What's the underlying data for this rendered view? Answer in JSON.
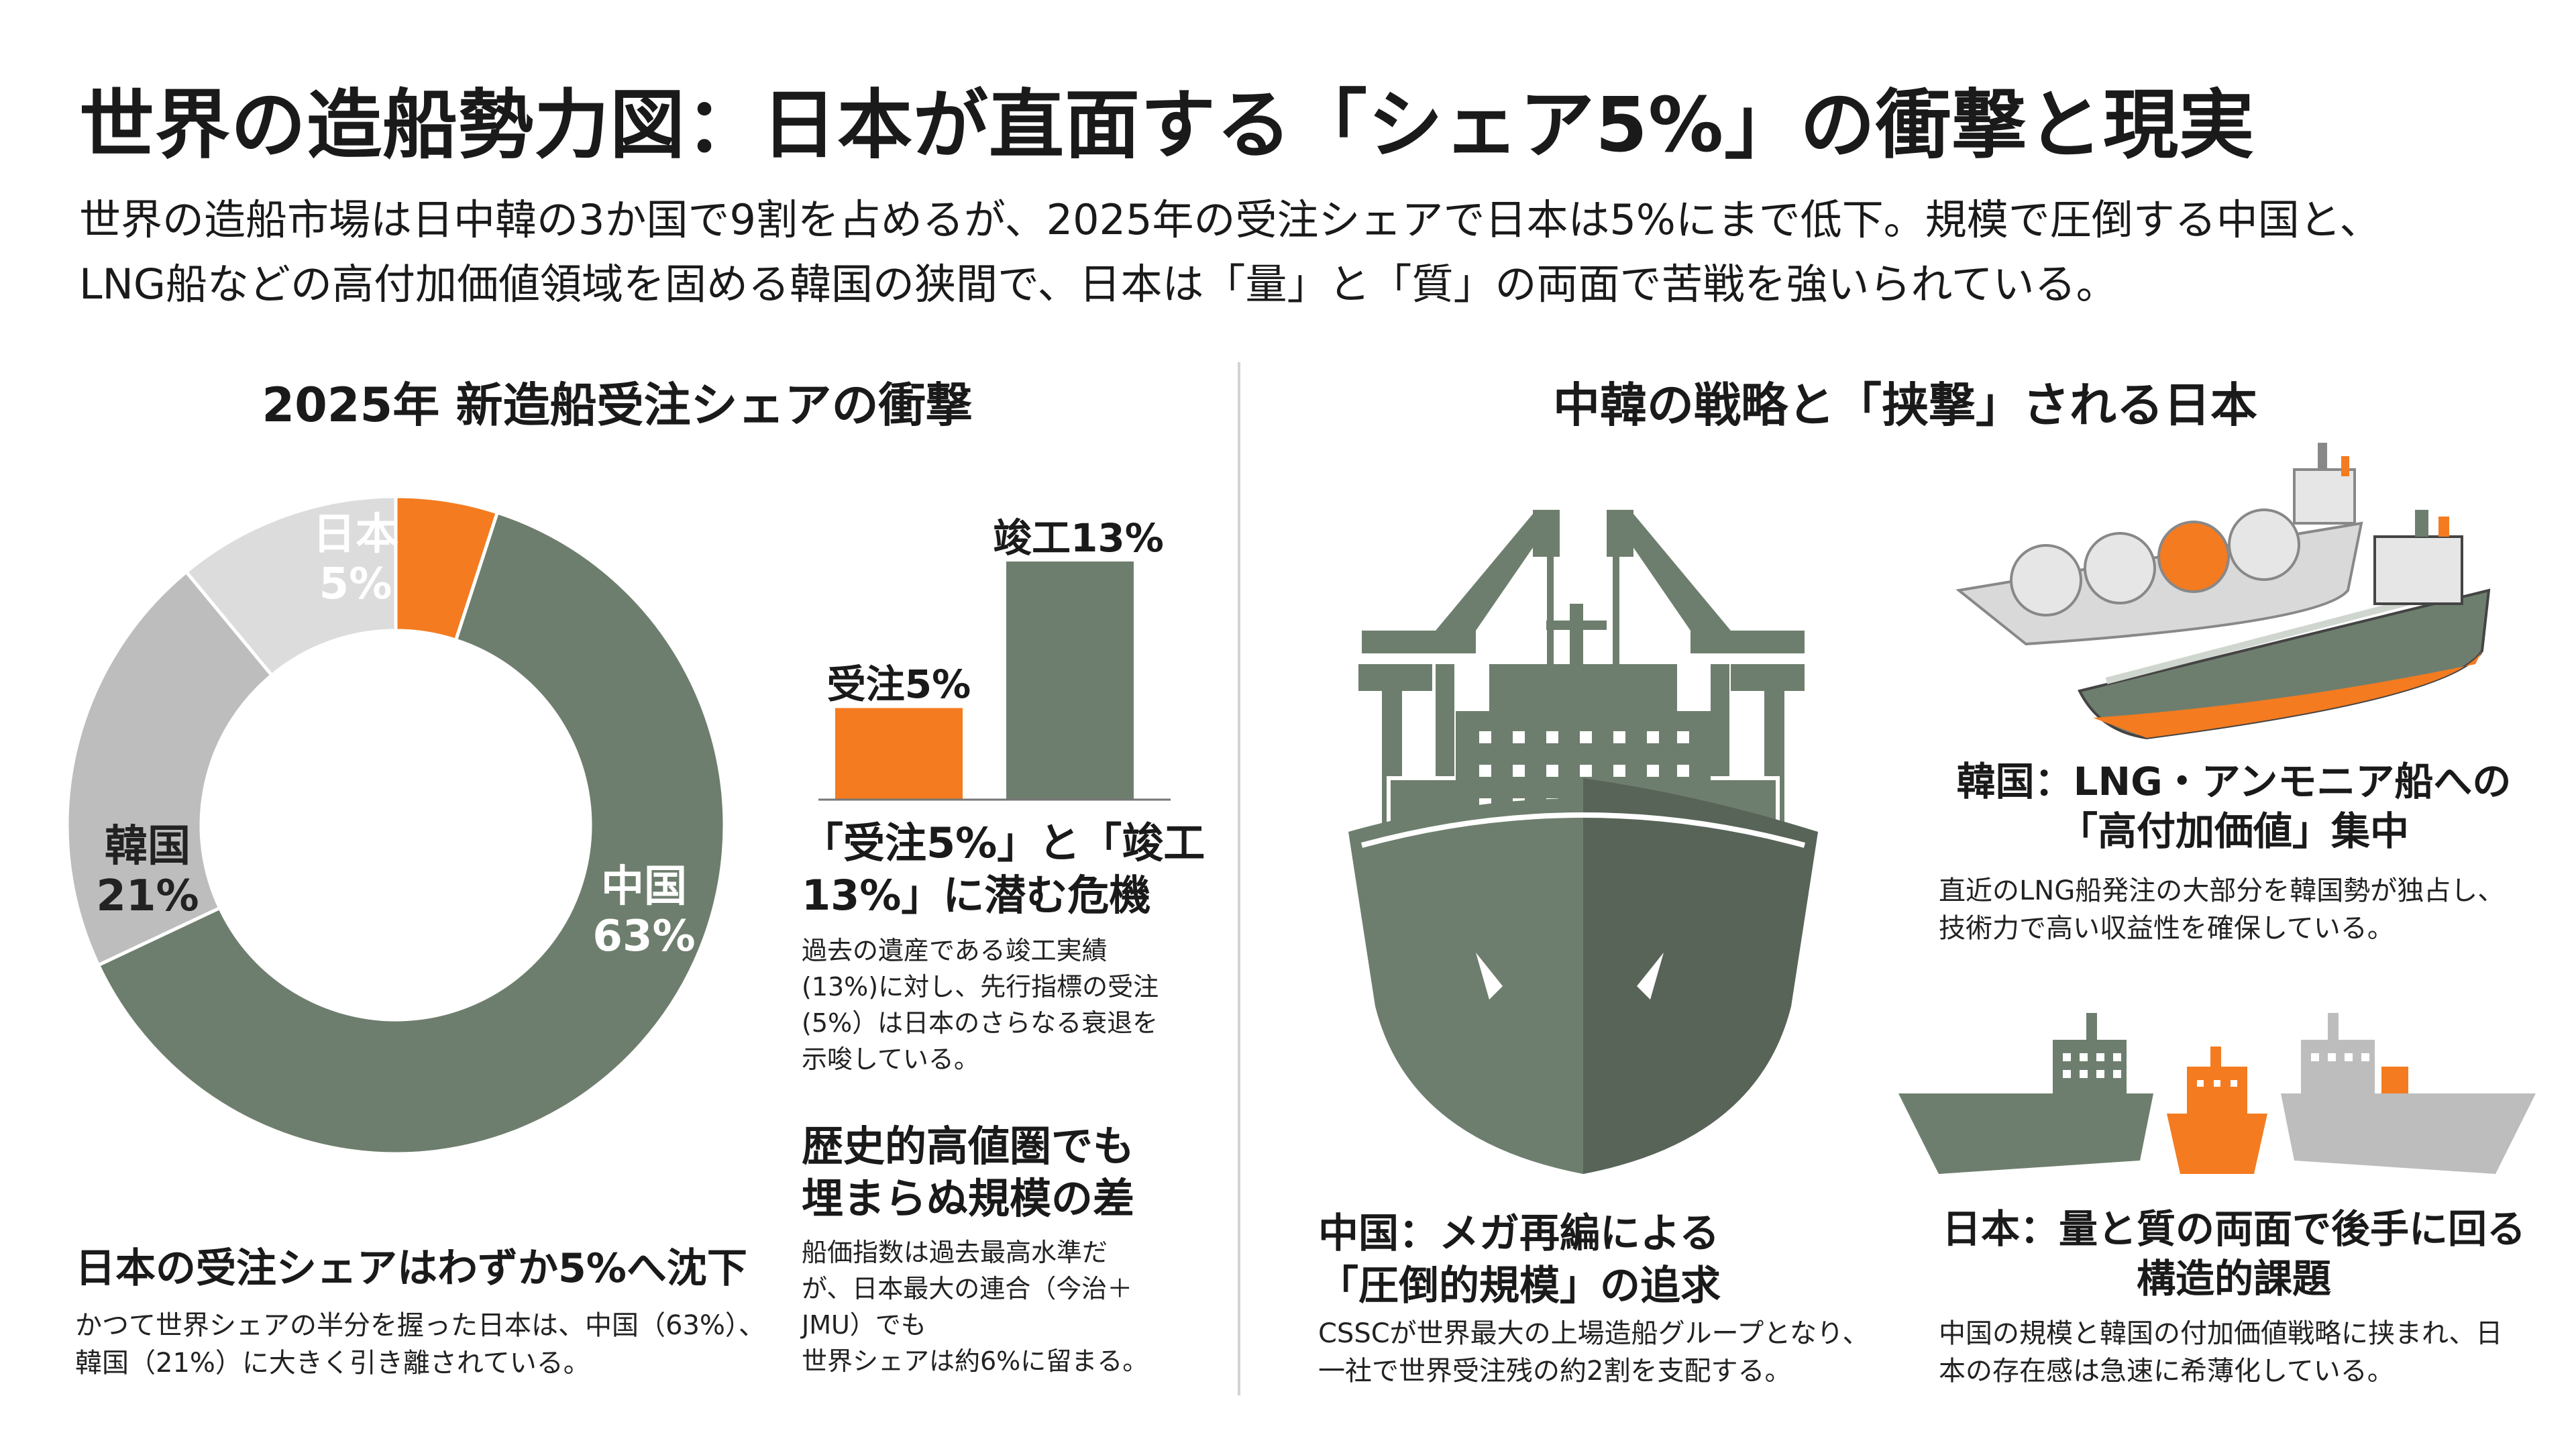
{
  "header": {
    "title": "世界の造船勢力図：日本が直面する「シェア5%」の衝撃と現実",
    "subtitle_line1": "世界の造船市場は日中韓の3か国で9割を占めるが、2025年の受注シェアで日本は5%にまで低下。規模で圧倒する中国と、",
    "subtitle_line2": "LNG船などの高付加価値領域を固める韓国の狭間で、日本は「量」と「質」の両面で苦戦を強いられている。"
  },
  "left": {
    "section_title": "2025年 新造船受注シェアの衝撃",
    "bottom_heading": "日本の受注シェアはわずか5%へ沈下",
    "bottom_body_line1": "かつて世界シェアの半分を握った日本は、中国（63%）、",
    "bottom_body_line2": "韓国（21%）に大きく引き離されている。"
  },
  "middle": {
    "crisis_heading_line1": "「受注5%」と「竣工",
    "crisis_heading_line2": "13%」に潜む危機",
    "crisis_body": [
      "過去の遺産である竣工実績",
      "(13%)に対し、先行指標の受注",
      "(5%）は日本のさらなる衰退を",
      "示唆している。"
    ],
    "scale_heading_line1": "歴史的高値圏でも",
    "scale_heading_line2": "埋まらぬ規模の差",
    "scale_body": [
      "船価指数は過去最高水準だ",
      "が、日本最大の連合（今治＋",
      "JMU）でも",
      "世界シェアは約6%に留まる。"
    ]
  },
  "right": {
    "section_title": "中韓の戦略と「挟撃」される日本",
    "china_heading_line1": "中国：メガ再編による",
    "china_heading_line2": "「圧倒的規模」の追求",
    "china_body_line1": "CSSCが世界最大の上場造船グループとなり、",
    "china_body_line2": "一社で世界受注残の約2割を支配する。",
    "korea_heading_line1": "韓国：LNG・アンモニア船への",
    "korea_heading_line2": "「高付加価値」集中",
    "korea_body_line1": "直近のLNG船発注の大部分を韓国勢が独占し、",
    "korea_body_line2": "技術力で高い収益性を確保している。",
    "japan_heading_line1": "日本：量と質の両面で後手に回る",
    "japan_heading_line2": "構造的課題",
    "japan_body_line1": "中国の規模と韓国の付加価値戦略に挟まれ、日",
    "japan_body_line2": "本の存在感は急速に希薄化している。"
  },
  "icons": {
    "china_ship": "container-ship-with-cranes-icon",
    "korea_ships": "lng-carrier-and-tanker-icon",
    "japan_ships": "squeezed-ship-icon"
  },
  "colors": {
    "gray": "#6e7e6e",
    "light": "#bdbdbd",
    "lighter": "#dcdcdc",
    "orange": "#f47b20"
  },
  "chart_data": [
    {
      "type": "pie",
      "donut": true,
      "slices": [
        {
          "name": "日本",
          "value": 5,
          "label": "5%",
          "color": "#f47b20"
        },
        {
          "name": "中国",
          "value": 63,
          "label": "63%",
          "color": "#6e7e6e"
        },
        {
          "name": "韓国",
          "value": 21,
          "label": "21%",
          "color": "#bdbdbd"
        },
        {
          "name": "",
          "value": 11,
          "label": "",
          "color": "#dcdcdc"
        }
      ]
    },
    {
      "type": "bar",
      "categories": [
        "受注",
        "竣工"
      ],
      "values": [
        5,
        13
      ],
      "labels": [
        "受注5%",
        "竣工13%"
      ],
      "colors": [
        "#f47b20",
        "#6e7e6e"
      ],
      "ylim": [
        0,
        13
      ]
    }
  ]
}
